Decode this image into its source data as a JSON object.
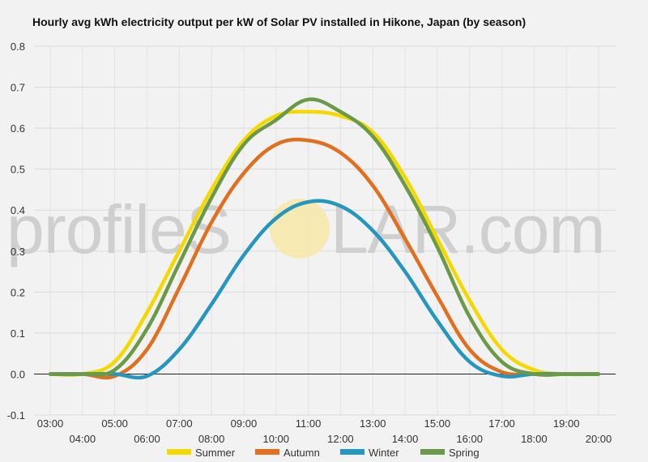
{
  "watermark": {
    "prefix": "profileS",
    "suffix": "LAR.com",
    "sun_color": "#f7e7a6"
  },
  "chart_data": {
    "type": "line",
    "title": "Hourly avg kWh electricity output per kW of Solar PV installed in Hikone, Japan (by season)",
    "xlabel": "",
    "ylabel": "",
    "x": [
      "03:00",
      "04:00",
      "05:00",
      "06:00",
      "07:00",
      "08:00",
      "09:00",
      "10:00",
      "11:00",
      "12:00",
      "13:00",
      "14:00",
      "15:00",
      "16:00",
      "17:00",
      "18:00",
      "19:00",
      "20:00"
    ],
    "ylim": [
      -0.1,
      0.8
    ],
    "yticks": [
      "-0.1",
      "0.0",
      "0.1",
      "0.2",
      "0.3",
      "0.4",
      "0.5",
      "0.6",
      "0.7",
      "0.8"
    ],
    "grid": true,
    "legend": "bottom",
    "series": [
      {
        "name": "Summer",
        "color": "#f5d800",
        "values": [
          0.0,
          0.0,
          0.03,
          0.15,
          0.3,
          0.45,
          0.57,
          0.63,
          0.64,
          0.63,
          0.59,
          0.48,
          0.33,
          0.18,
          0.06,
          0.01,
          0.0,
          0.0
        ]
      },
      {
        "name": "Autumn",
        "color": "#e07020",
        "values": [
          0.0,
          0.0,
          -0.005,
          0.06,
          0.21,
          0.37,
          0.49,
          0.56,
          0.57,
          0.54,
          0.46,
          0.33,
          0.19,
          0.06,
          0.005,
          0.0,
          0.0,
          0.0
        ]
      },
      {
        "name": "Winter",
        "color": "#2596be",
        "values": [
          0.0,
          0.0,
          0.0,
          -0.005,
          0.06,
          0.17,
          0.29,
          0.38,
          0.42,
          0.41,
          0.35,
          0.25,
          0.13,
          0.03,
          -0.005,
          0.0,
          0.0,
          0.0
        ]
      },
      {
        "name": "Spring",
        "color": "#6a9a48",
        "values": [
          0.0,
          0.0,
          0.01,
          0.11,
          0.27,
          0.43,
          0.56,
          0.62,
          0.67,
          0.64,
          0.58,
          0.46,
          0.31,
          0.14,
          0.03,
          0.0,
          0.0,
          0.0
        ]
      }
    ]
  }
}
